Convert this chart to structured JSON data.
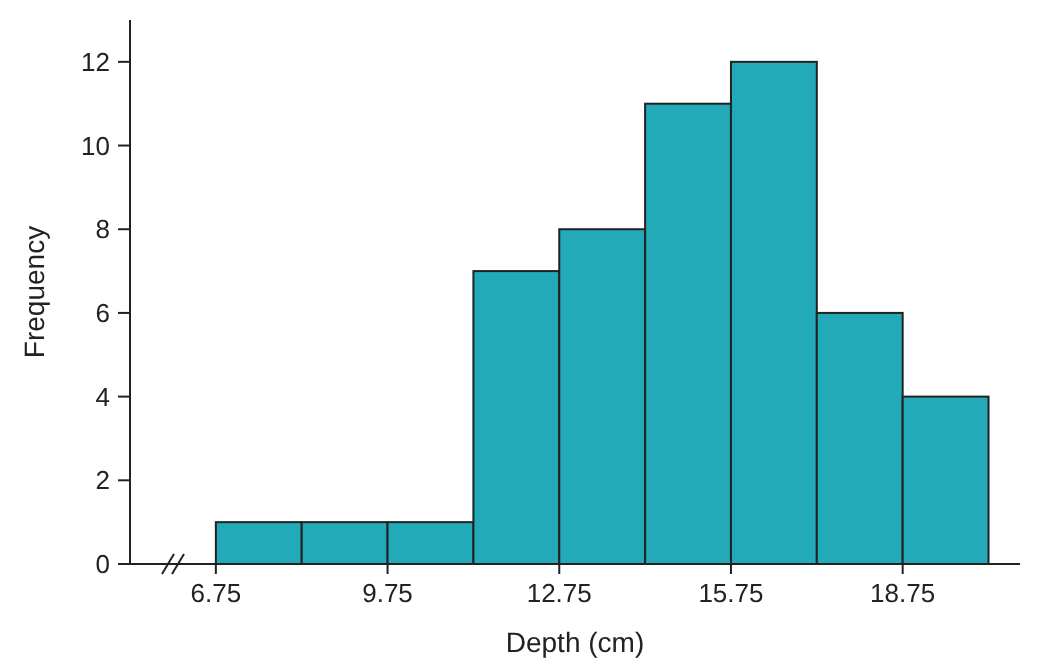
{
  "chart_data": {
    "type": "histogram",
    "xlabel": "Depth (cm)",
    "ylabel": "Frequency",
    "bins": [
      6.75,
      8.25,
      9.75,
      11.25,
      12.75,
      14.25,
      15.75,
      17.25,
      18.75,
      20.25
    ],
    "values": [
      1,
      1,
      1,
      7,
      8,
      11,
      12,
      6,
      4
    ],
    "color": "#22aab8",
    "xlim": [
      5.25,
      20.8
    ],
    "xticks": [
      6.75,
      9.75,
      12.75,
      15.75,
      18.75
    ],
    "ylim": [
      0,
      13
    ],
    "yticks": [
      0,
      2,
      4,
      6,
      8,
      10,
      12
    ],
    "grid": false
  }
}
